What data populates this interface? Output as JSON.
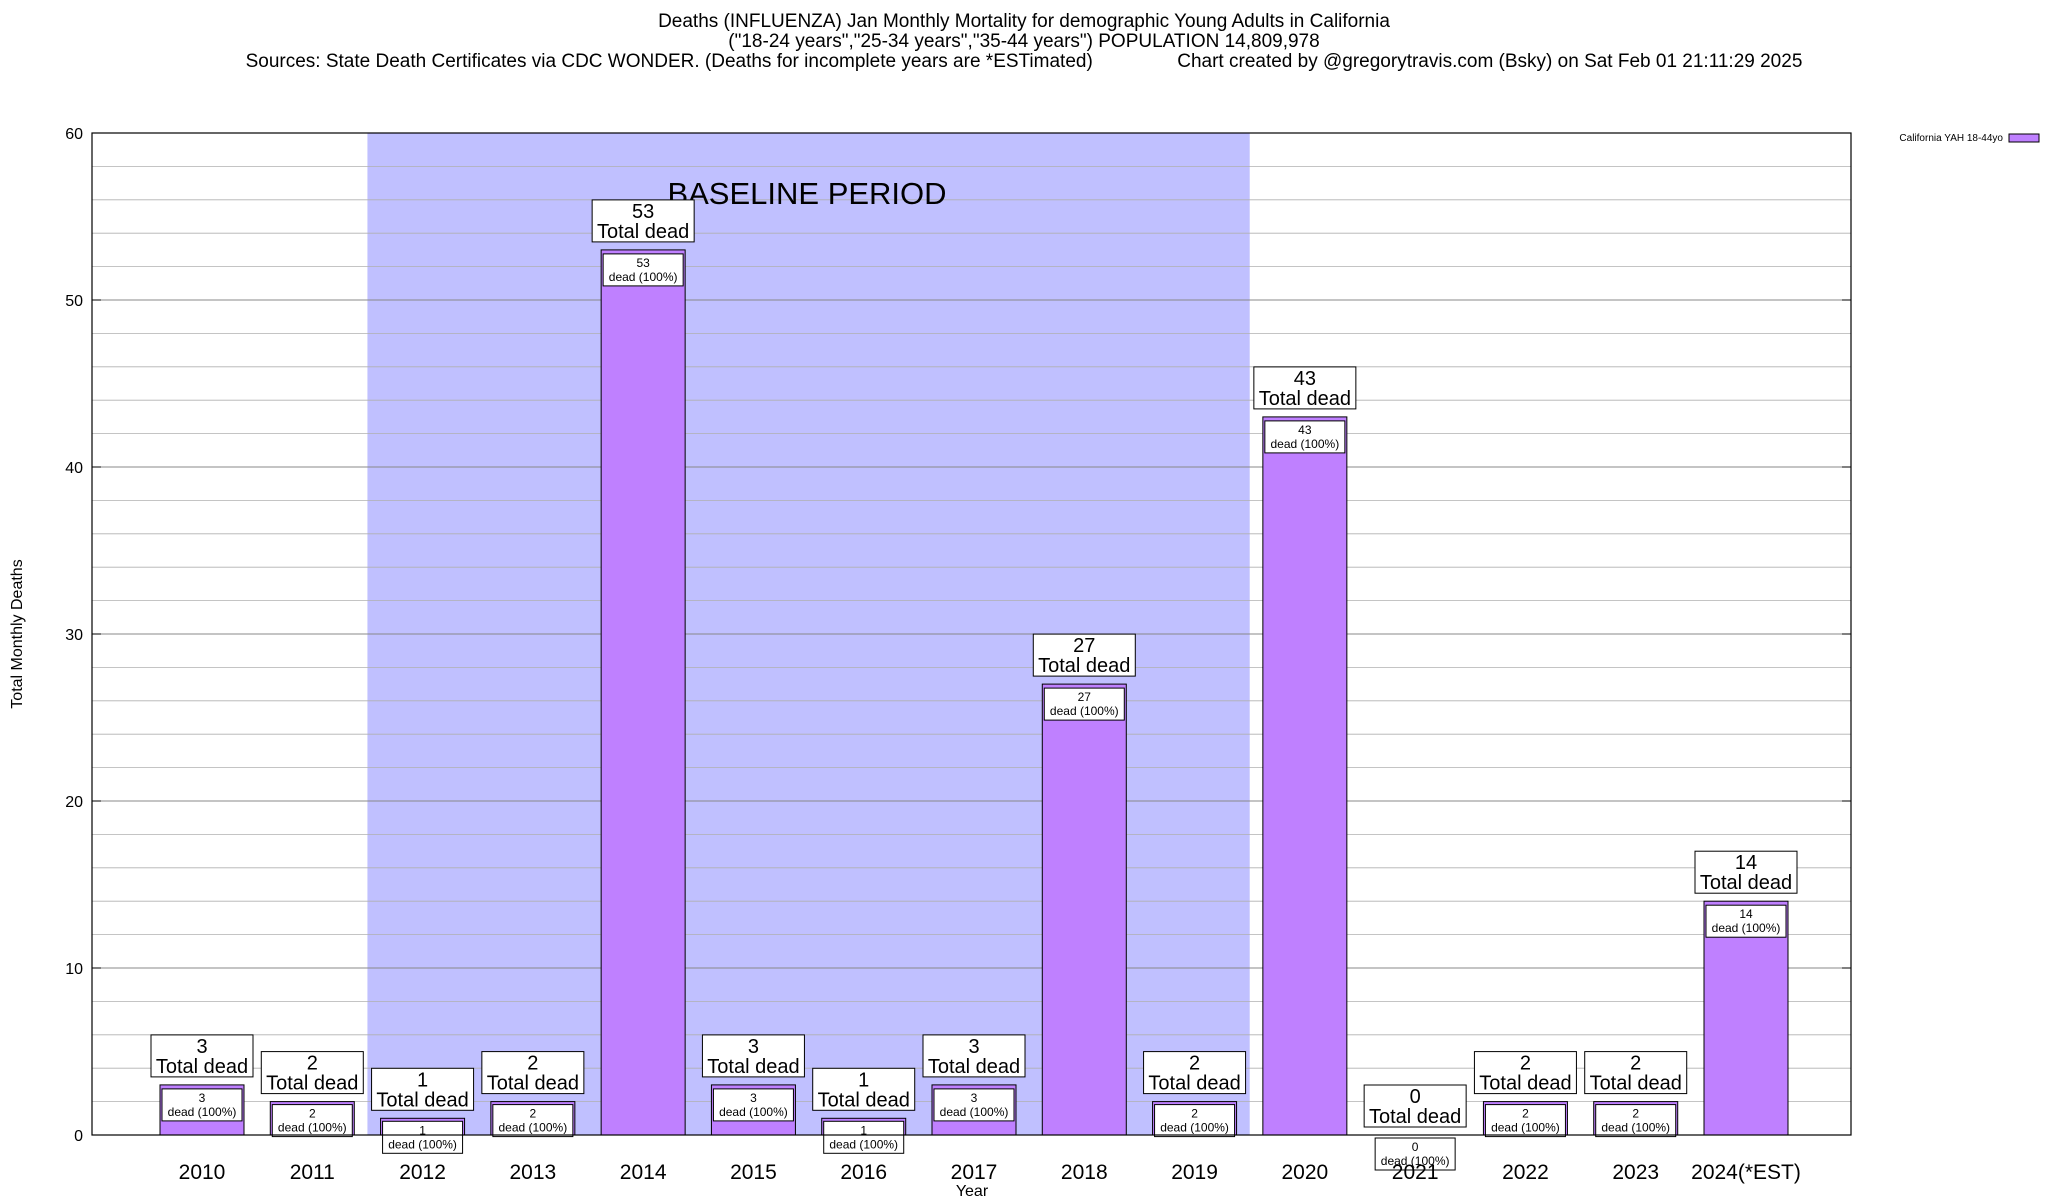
{
  "header": {
    "title": "Deaths (INFLUENZA) Jan Monthly Mortality for demographic Young Adults in California",
    "subtitle": "(\"18-24 years\",\"25-34 years\",\"35-44 years\") POPULATION 14,809,978",
    "sources": "Sources: State Death Certificates via CDC WONDER. (Deaths for incomplete years are *ESTimated)                Chart created by @gregorytravis.com (Bsky) on Sat Feb 01 21:11:29 2025"
  },
  "chart_data": {
    "type": "bar",
    "xlabel": "Year",
    "ylabel": "Total Monthly Deaths",
    "ylim": [
      0,
      60
    ],
    "yticks": [
      0,
      10,
      20,
      30,
      40,
      50,
      60
    ],
    "grid": true,
    "categories": [
      "2010",
      "2011",
      "2012",
      "2013",
      "2014",
      "2015",
      "2016",
      "2017",
      "2018",
      "2019",
      "2020",
      "2021",
      "2022",
      "2023",
      "2024(*EST)"
    ],
    "series": [
      {
        "name": "California YAH 18-44yo",
        "color": "#bf80ff",
        "values": [
          3,
          2,
          1,
          2,
          53,
          3,
          1,
          3,
          27,
          2,
          43,
          0,
          2,
          2,
          14
        ]
      }
    ],
    "total_label_suffix": "Total dead",
    "inner_label_suffix": "dead (100%)",
    "baseline": {
      "label": "BASELINE PERIOD",
      "from": "2012",
      "to": "2019",
      "color": "#c0c0ff"
    },
    "legend_position": "top-right"
  }
}
